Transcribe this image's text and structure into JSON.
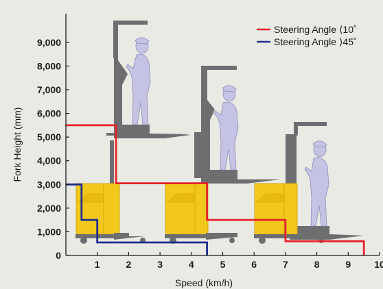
{
  "colors": {
    "background": "#e9eae4",
    "axis": "#1a1a1a",
    "truck_body": "#f2c81c",
    "mast": "#6d6e70",
    "figure": "#c4c3e3"
  },
  "chart_data": {
    "type": "line",
    "xlabel": "Speed (km/h)",
    "ylabel": "Fork Height (mm)",
    "xlim": [
      0,
      10
    ],
    "ylim": [
      0,
      10000
    ],
    "x_ticks": [
      1,
      2,
      3,
      4,
      5,
      6,
      7,
      8,
      9,
      10
    ],
    "y_ticks": [
      0,
      1000,
      2000,
      3000,
      4000,
      5000,
      6000,
      7000,
      8000,
      9000
    ],
    "x_tick_labels": [
      "1",
      "2",
      "3",
      "4",
      "5",
      "6",
      "7",
      "8",
      "9",
      "10"
    ],
    "y_tick_labels": [
      "0",
      "1,000",
      "2,000",
      "3,000",
      "4,000",
      "5,000",
      "6,000",
      "7,000",
      "8,000",
      "9,000"
    ],
    "grid": false,
    "legend_position": "top-right",
    "series": [
      {
        "name": "Steering Angle ⟨10˚",
        "color": "#e8222a",
        "points": [
          [
            0,
            5500
          ],
          [
            1.6,
            5500
          ],
          [
            1.6,
            3050
          ],
          [
            4.5,
            3050
          ],
          [
            4.5,
            1500
          ],
          [
            7,
            1500
          ],
          [
            7,
            600
          ],
          [
            9.5,
            600
          ],
          [
            9.5,
            0
          ]
        ]
      },
      {
        "name": "Steering Angle ⟩45˚",
        "color": "#1f2f8c",
        "points": [
          [
            0,
            3000
          ],
          [
            0.5,
            3000
          ],
          [
            0.5,
            1500
          ],
          [
            1,
            1500
          ],
          [
            1,
            550
          ],
          [
            4.5,
            550
          ],
          [
            4.5,
            0
          ]
        ]
      }
    ]
  }
}
